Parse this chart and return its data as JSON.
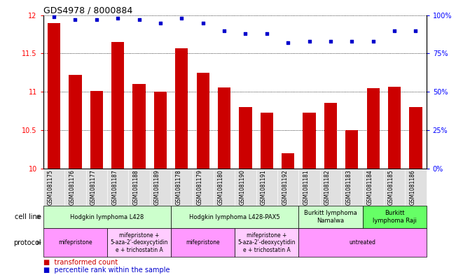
{
  "title": "GDS4978 / 8000884",
  "samples": [
    "GSM1081175",
    "GSM1081176",
    "GSM1081177",
    "GSM1081187",
    "GSM1081188",
    "GSM1081189",
    "GSM1081178",
    "GSM1081179",
    "GSM1081180",
    "GSM1081190",
    "GSM1081191",
    "GSM1081192",
    "GSM1081181",
    "GSM1081182",
    "GSM1081183",
    "GSM1081184",
    "GSM1081185",
    "GSM1081186"
  ],
  "bar_values": [
    11.9,
    11.22,
    11.01,
    11.65,
    11.1,
    11.0,
    11.57,
    11.25,
    11.06,
    10.8,
    10.73,
    10.2,
    10.73,
    10.86,
    10.5,
    11.05,
    11.07,
    10.8
  ],
  "dot_values": [
    99,
    97,
    97,
    98,
    97,
    95,
    98,
    95,
    90,
    88,
    88,
    82,
    83,
    83,
    83,
    83,
    90,
    90
  ],
  "ylim_left": [
    10,
    12
  ],
  "ylim_right": [
    0,
    100
  ],
  "yticks_left": [
    10,
    10.5,
    11,
    11.5,
    12
  ],
  "yticks_right": [
    0,
    25,
    50,
    75,
    100
  ],
  "bar_color": "#cc0000",
  "dot_color": "#0000cc",
  "cell_line_groups": [
    {
      "label": "Hodgkin lymphoma L428",
      "start": 0,
      "end": 5,
      "color": "#ccffcc"
    },
    {
      "label": "Hodgkin lymphoma L428-PAX5",
      "start": 6,
      "end": 11,
      "color": "#ccffcc"
    },
    {
      "label": "Burkitt lymphoma\nNamalwa",
      "start": 12,
      "end": 14,
      "color": "#ccffcc"
    },
    {
      "label": "Burkitt\nlymphoma Raji",
      "start": 15,
      "end": 17,
      "color": "#66ff66"
    }
  ],
  "protocol_groups": [
    {
      "label": "mifepristone",
      "start": 0,
      "end": 2,
      "color": "#ff99ff"
    },
    {
      "label": "mifepristone +\n5-aza-2'-deoxycytidin\ne + trichostatin A",
      "start": 3,
      "end": 5,
      "color": "#ffccff"
    },
    {
      "label": "mifepristone",
      "start": 6,
      "end": 8,
      "color": "#ff99ff"
    },
    {
      "label": "mifepristone +\n5-aza-2'-deoxycytidin\ne + trichostatin A",
      "start": 9,
      "end": 11,
      "color": "#ffccff"
    },
    {
      "label": "untreated",
      "start": 12,
      "end": 17,
      "color": "#ff99ff"
    }
  ],
  "cell_line_label": "cell line",
  "protocol_label": "protocol",
  "bar_color_legend": "#cc0000",
  "dot_color_legend": "#0000cc",
  "legend_label_bar": "transformed count",
  "legend_label_dot": "percentile rank within the sample",
  "bar_width": 0.6,
  "xticklabel_fontsize": 5.5,
  "ytick_fontsize": 7,
  "title_fontsize": 9,
  "annotation_fontsize": 6,
  "protocol_fontsize": 5.5
}
